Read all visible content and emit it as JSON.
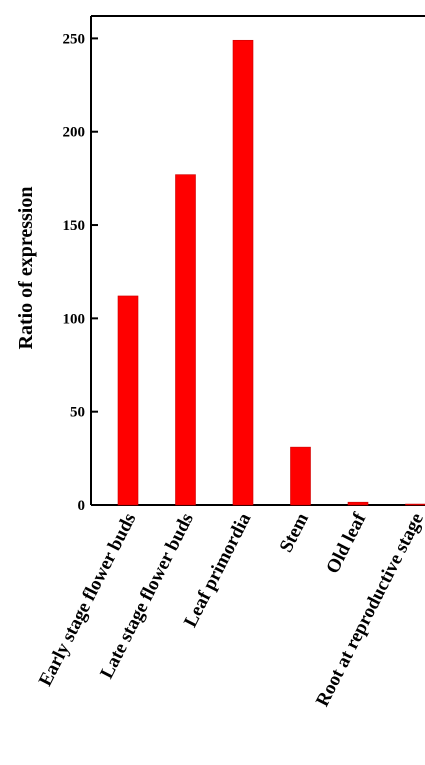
{
  "chart_data": {
    "type": "bar",
    "title": "",
    "xlabel": "",
    "ylabel": "Ratio of expression",
    "categories": [
      "Early stage flower buds",
      "Late stage flower buds",
      "Leaf primordia",
      "Stem",
      "Old leaf",
      "Root at reproductive stage"
    ],
    "values": [
      112,
      177,
      249,
      31,
      1.5,
      0.5
    ],
    "ylim": [
      0,
      262
    ],
    "yticks": [
      0,
      50,
      100,
      150,
      200,
      250
    ],
    "grid": false,
    "legend": "none",
    "bar_color": "#ff0000",
    "bar_edge_color": "#cc0000"
  }
}
